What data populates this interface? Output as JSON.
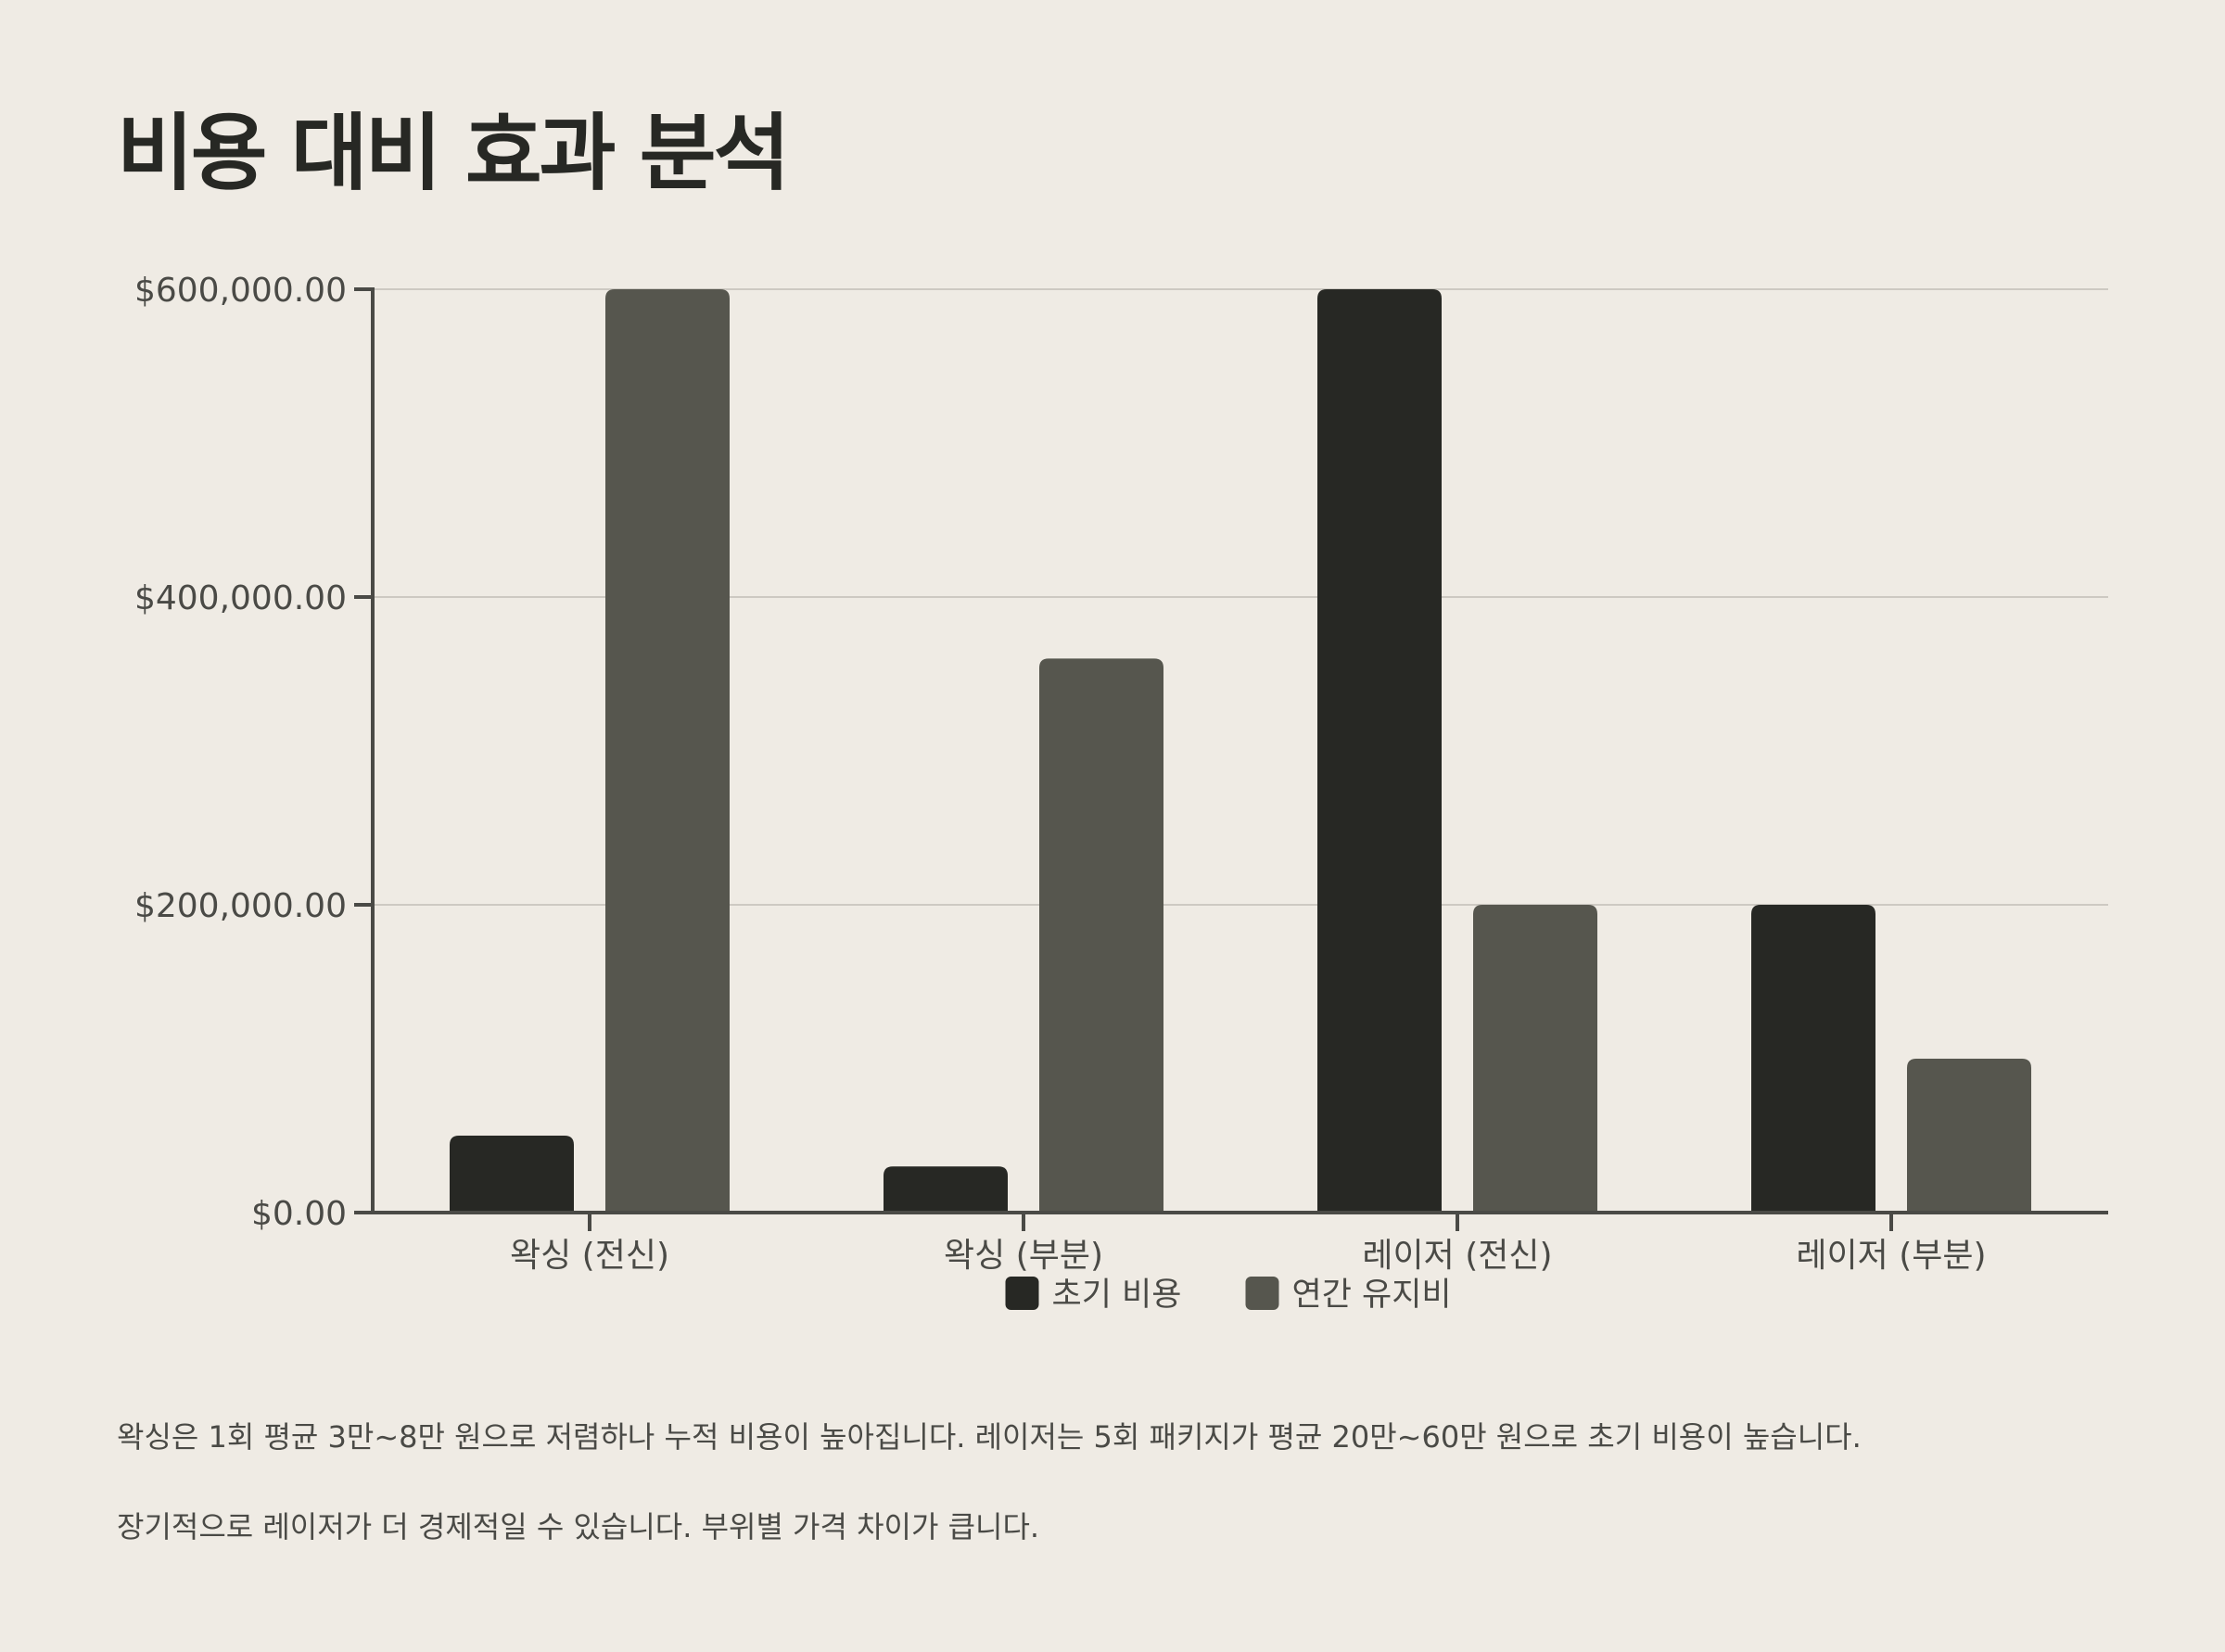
{
  "page": {
    "title": "비용 대비 효과 분석",
    "notes": [
      "왁싱은 1회 평균 3만~8만 원으로 저렴하나 누적 비용이 높아집니다. 레이저는 5회 패키지가 평균 20만~60만 원으로 초기 비용이 높습니다.",
      "장기적으로 레이저가 더 경제적일 수 있습니다. 부위별 가격 차이가 큽니다."
    ]
  },
  "colors": {
    "background": "#efebe4",
    "text": "#272824",
    "axis": "#4a4a46",
    "grid": "#cdc9c2"
  },
  "chart_data": {
    "type": "bar",
    "title": "",
    "xlabel": "",
    "ylabel": "",
    "categories": [
      "왁싱 (전신)",
      "왁싱 (부분)",
      "레이저 (전신)",
      "레이저 (부분)"
    ],
    "series": [
      {
        "name": "초기 비용",
        "color": "#272824",
        "values": [
          50000,
          30000,
          600000,
          200000
        ]
      },
      {
        "name": "연간 유지비",
        "color": "#56564e",
        "values": [
          600000,
          360000,
          200000,
          100000
        ]
      }
    ],
    "ylim": [
      0,
      600000
    ],
    "yticks": [
      0,
      200000,
      400000,
      600000
    ],
    "ytick_labels": [
      "$0.00",
      "$200,000.00",
      "$400,000.00",
      "$600,000.00"
    ],
    "grid": true,
    "legend_position": "bottom-center"
  }
}
